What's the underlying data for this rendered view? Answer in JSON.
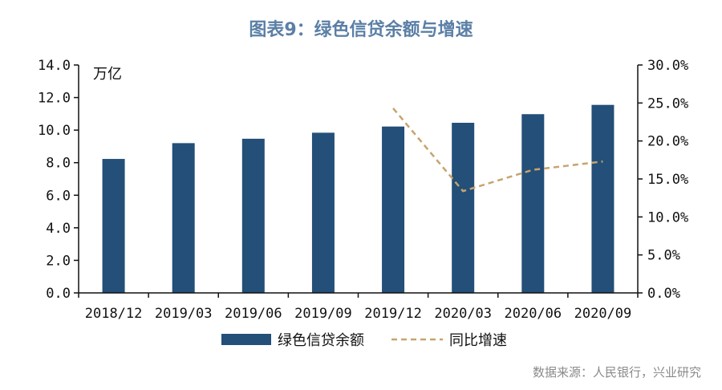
{
  "colors": {
    "title": "#5b7fa6",
    "bar": "#234f78",
    "line": "#c8a36d",
    "axis": "#111111",
    "source": "#8a8a8a"
  },
  "chart_data": {
    "type": "bar",
    "title": "图表9：绿色信贷余额与增速",
    "unit_label": "万亿",
    "categories": [
      "2018/12",
      "2019/03",
      "2019/06",
      "2019/09",
      "2019/12",
      "2020/03",
      "2020/06",
      "2020/09"
    ],
    "y_left": {
      "ylim": [
        0,
        14
      ],
      "ticks": [
        "0.0",
        "2.0",
        "4.0",
        "6.0",
        "8.0",
        "10.0",
        "12.0",
        "14.0"
      ]
    },
    "y_right": {
      "ylim": [
        0,
        30
      ],
      "ticks": [
        "0.0%",
        "5.0%",
        "10.0%",
        "15.0%",
        "20.0%",
        "25.0%",
        "30.0%"
      ]
    },
    "series": [
      {
        "name": "绿色信贷余额",
        "kind": "bar",
        "axis": "left",
        "values": [
          8.23,
          9.2,
          9.47,
          9.84,
          10.22,
          10.45,
          10.98,
          11.55
        ]
      },
      {
        "name": "同比增速",
        "kind": "dashed-line",
        "axis": "right",
        "values": [
          null,
          null,
          null,
          null,
          24.3,
          13.4,
          16.2,
          17.3
        ]
      }
    ],
    "legend_position": "bottom",
    "grid": false
  },
  "source": "数据来源：人民银行，兴业研究"
}
